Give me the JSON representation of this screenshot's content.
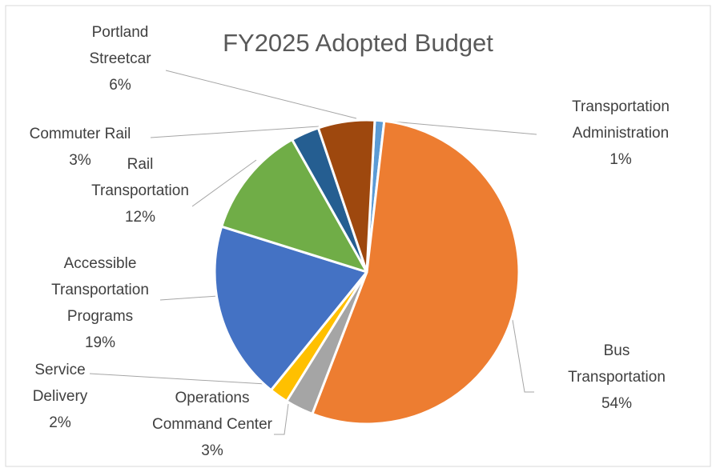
{
  "chart_data": {
    "type": "pie",
    "title": "FY2025 Adopted Budget",
    "categories": [
      "Transportation Administration",
      "Bus Transportation",
      "Operations Command Center",
      "Service Delivery",
      "Accessible Transportation Programs",
      "Rail Transportation",
      "Commuter Rail",
      "Portland Streetcar"
    ],
    "values": [
      1,
      54,
      3,
      2,
      19,
      12,
      3,
      6
    ],
    "value_labels": [
      "1%",
      "54%",
      "3%",
      "2%",
      "19%",
      "12%",
      "3%",
      "6%"
    ],
    "colors": [
      "#5b9bd5",
      "#ed7d31",
      "#a5a5a5",
      "#ffc000",
      "#4472c4",
      "#70ad47",
      "#255e91",
      "#9e480e"
    ]
  }
}
